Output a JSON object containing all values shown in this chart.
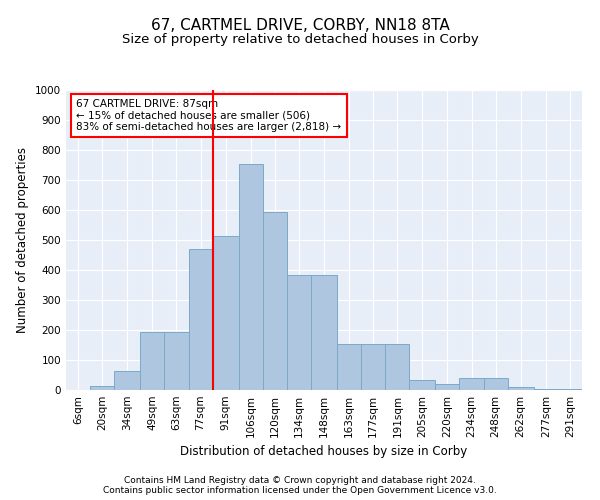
{
  "title": "67, CARTMEL DRIVE, CORBY, NN18 8TA",
  "subtitle": "Size of property relative to detached houses in Corby",
  "xlabel": "Distribution of detached houses by size in Corby",
  "ylabel": "Number of detached properties",
  "footer_line1": "Contains HM Land Registry data © Crown copyright and database right 2024.",
  "footer_line2": "Contains public sector information licensed under the Open Government Licence v3.0.",
  "property_label": "67 CARTMEL DRIVE: 87sqm",
  "annotation_line1": "← 15% of detached houses are smaller (506)",
  "annotation_line2": "83% of semi-detached houses are larger (2,818) →",
  "bar_labels": [
    "6sqm",
    "20sqm",
    "34sqm",
    "49sqm",
    "63sqm",
    "77sqm",
    "91sqm",
    "106sqm",
    "120sqm",
    "134sqm",
    "148sqm",
    "163sqm",
    "177sqm",
    "191sqm",
    "205sqm",
    "220sqm",
    "234sqm",
    "248sqm",
    "262sqm",
    "277sqm",
    "291sqm"
  ],
  "bar_values": [
    0,
    13,
    65,
    195,
    195,
    470,
    515,
    755,
    595,
    385,
    385,
    155,
    155,
    155,
    35,
    20,
    40,
    40,
    10,
    5,
    2
  ],
  "bin_edges": [
    6,
    20,
    34,
    49,
    63,
    77,
    91,
    106,
    120,
    134,
    148,
    163,
    177,
    191,
    205,
    220,
    234,
    248,
    262,
    277,
    291,
    305
  ],
  "bar_color": "#aec6e0",
  "bar_edge_color": "#7aaac8",
  "vline_color": "red",
  "vline_x": 91,
  "box_color": "red",
  "ylim": [
    0,
    1000
  ],
  "yticks": [
    0,
    100,
    200,
    300,
    400,
    500,
    600,
    700,
    800,
    900,
    1000
  ],
  "bg_color": "#e8eef8",
  "grid_color": "white",
  "title_fontsize": 11,
  "subtitle_fontsize": 9.5,
  "axis_label_fontsize": 8.5,
  "tick_fontsize": 7.5,
  "footer_fontsize": 6.5
}
